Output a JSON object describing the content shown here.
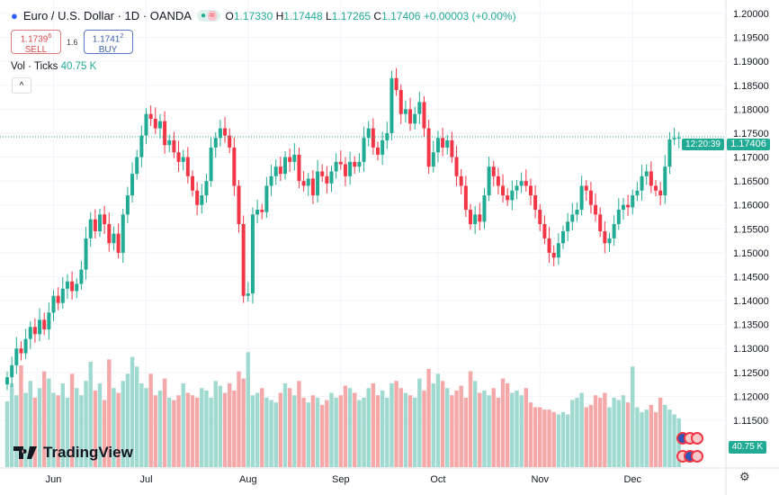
{
  "header": {
    "symbol": "Euro / U.S. Dollar · 1D · OANDA",
    "market_status": "●",
    "indicator": "≈",
    "open_label": "O",
    "open": "1.17330",
    "high_label": "H",
    "high": "1.17448",
    "low_label": "L",
    "low": "1.17265",
    "close_label": "C",
    "close": "1.17406",
    "change": "+0.00003 (+0.00%)"
  },
  "trade": {
    "sell_price": "1.1739",
    "sell_sup": "6",
    "sell_label": "SELL",
    "spread": "1.6",
    "buy_price": "1.1741",
    "buy_sup": "2",
    "buy_label": "BUY"
  },
  "volume_legend": {
    "label": "Vol · Ticks",
    "value": "40.75 K"
  },
  "collapse_icon": "^",
  "last_price": {
    "price": "1.17406",
    "countdown": "12:20:39"
  },
  "volume_label": "40.75 K",
  "logo": "TradingView",
  "colors": {
    "up": "#22ab94",
    "down": "#f23645",
    "vol_up": "#9fd9cf",
    "vol_down": "#f5a8a8"
  },
  "chart_data": {
    "type": "candlestick",
    "title": "Euro / U.S. Dollar · 1D · OANDA",
    "y_ticks": [
      "1.20000",
      "1.19500",
      "1.19000",
      "1.18500",
      "1.18000",
      "1.17500",
      "1.17000",
      "1.16500",
      "1.16000",
      "1.15500",
      "1.15000",
      "1.14500",
      "1.14000",
      "1.13500",
      "1.13000",
      "1.12500",
      "1.12000",
      "1.11500"
    ],
    "ylim": [
      1.115,
      1.2
    ],
    "x_ticks": [
      {
        "label": "Jun",
        "index": 10
      },
      {
        "label": "Jul",
        "index": 30
      },
      {
        "label": "Aug",
        "index": 52
      },
      {
        "label": "Sep",
        "index": 72
      },
      {
        "label": "Oct",
        "index": 93
      },
      {
        "label": "Nov",
        "index": 115
      },
      {
        "label": "Dec",
        "index": 135
      }
    ],
    "open_first": 1.1225,
    "closes": [
      1.124,
      1.1265,
      1.13,
      1.129,
      1.132,
      1.1345,
      1.133,
      1.136,
      1.134,
      1.1375,
      1.141,
      1.1395,
      1.1425,
      1.144,
      1.142,
      1.1435,
      1.1465,
      1.153,
      1.157,
      1.1545,
      1.158,
      1.156,
      1.152,
      1.154,
      1.15,
      1.158,
      1.162,
      1.1665,
      1.17,
      1.1745,
      1.179,
      1.178,
      1.176,
      1.1775,
      1.1725,
      1.1735,
      1.171,
      1.169,
      1.17,
      1.166,
      1.163,
      1.16,
      1.162,
      1.165,
      1.172,
      1.174,
      1.176,
      1.1745,
      1.172,
      1.164,
      1.156,
      1.141,
      1.1415,
      1.158,
      1.159,
      1.1585,
      1.164,
      1.166,
      1.168,
      1.1665,
      1.17,
      1.169,
      1.1705,
      1.165,
      1.164,
      1.1655,
      1.162,
      1.167,
      1.166,
      1.1645,
      1.167,
      1.169,
      1.1685,
      1.166,
      1.169,
      1.168,
      1.169,
      1.174,
      1.176,
      1.172,
      1.1705,
      1.1735,
      1.175,
      1.1865,
      1.184,
      1.179,
      1.18,
      1.177,
      1.179,
      1.1815,
      1.176,
      1.168,
      1.171,
      1.174,
      1.172,
      1.1735,
      1.17,
      1.166,
      1.164,
      1.159,
      1.156,
      1.158,
      1.1565,
      1.162,
      1.168,
      1.166,
      1.164,
      1.162,
      1.161,
      1.163,
      1.164,
      1.165,
      1.164,
      1.162,
      1.159,
      1.156,
      1.153,
      1.15,
      1.149,
      1.152,
      1.1545,
      1.1565,
      1.158,
      1.159,
      1.164,
      1.163,
      1.16,
      1.158,
      1.1545,
      1.152,
      1.153,
      1.156,
      1.159,
      1.16,
      1.1595,
      1.162,
      1.163,
      1.166,
      1.167,
      1.164,
      1.163,
      1.162,
      1.168,
      1.1737,
      1.174,
      1.17406
    ],
    "volumes_k": [
      55,
      70,
      60,
      85,
      62,
      72,
      58,
      66,
      80,
      74,
      62,
      60,
      70,
      58,
      78,
      66,
      60,
      72,
      88,
      64,
      70,
      56,
      90,
      66,
      62,
      72,
      78,
      92,
      84,
      70,
      66,
      78,
      60,
      64,
      74,
      58,
      56,
      60,
      70,
      62,
      60,
      58,
      66,
      64,
      58,
      72,
      68,
      62,
      70,
      64,
      80,
      74,
      96,
      60,
      62,
      66,
      58,
      56,
      54,
      62,
      70,
      66,
      60,
      72,
      58,
      54,
      60,
      58,
      52,
      56,
      62,
      58,
      60,
      68,
      66,
      62,
      56,
      58,
      66,
      70,
      60,
      64,
      58,
      70,
      72,
      66,
      62,
      60,
      58,
      74,
      64,
      82,
      70,
      78,
      72,
      66,
      60,
      64,
      68,
      58,
      80,
      72,
      62,
      64,
      60,
      66,
      58,
      74,
      70,
      62,
      64,
      60,
      66,
      54,
      50,
      50,
      48,
      48,
      46,
      44,
      46,
      44,
      56,
      58,
      62,
      50,
      52,
      60,
      58,
      62,
      50,
      58,
      56,
      60,
      54,
      84,
      50,
      46,
      48,
      52,
      46,
      58,
      52,
      48,
      44,
      40.75
    ]
  }
}
